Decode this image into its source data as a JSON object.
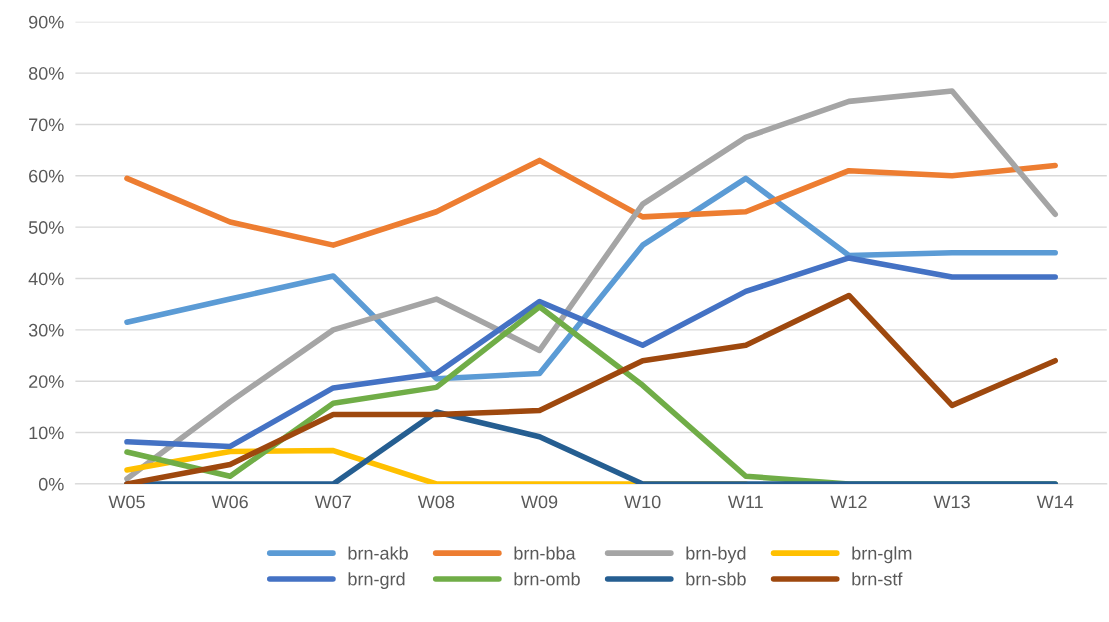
{
  "chart_data": {
    "type": "line",
    "categories": [
      "W05",
      "W06",
      "W07",
      "W08",
      "W09",
      "W10",
      "W11",
      "W12",
      "W13",
      "W14"
    ],
    "series": [
      {
        "name": "brn-akb",
        "color": "#5b9bd5",
        "values": [
          31.5,
          36,
          40.5,
          20.5,
          21.5,
          46.5,
          59.5,
          44.5,
          45,
          45
        ]
      },
      {
        "name": "brn-bba",
        "color": "#ed7d31",
        "values": [
          59.5,
          51,
          46.5,
          53,
          63,
          52,
          53,
          61,
          60,
          62
        ]
      },
      {
        "name": "brn-byd",
        "color": "#a5a5a5",
        "values": [
          1,
          16,
          30,
          36,
          26,
          54.5,
          67.5,
          74.5,
          76.5,
          52.5
        ]
      },
      {
        "name": "brn-glm",
        "color": "#ffc000",
        "values": [
          2.7,
          6.3,
          6.5,
          0,
          0,
          0,
          0,
          null,
          null,
          null
        ]
      },
      {
        "name": "brn-grd",
        "color": "#4472c4",
        "values": [
          8.2,
          7.3,
          18.7,
          21.5,
          35.5,
          27,
          37.5,
          44,
          40.3,
          40.3
        ]
      },
      {
        "name": "brn-omb",
        "color": "#70ad47",
        "values": [
          6.2,
          1.5,
          15.7,
          18.8,
          34.5,
          19.2,
          1.5,
          0,
          0,
          0
        ]
      },
      {
        "name": "brn-sbb",
        "color": "#255e91",
        "values": [
          0,
          0,
          0,
          14,
          9.2,
          0,
          0,
          0,
          0,
          0
        ]
      },
      {
        "name": "brn-stf",
        "color": "#9e480e",
        "values": [
          0,
          3.8,
          13.5,
          13.5,
          14.3,
          24,
          27,
          36.7,
          15.3,
          24
        ]
      }
    ],
    "ylim": [
      0,
      90
    ],
    "yticks": [
      {
        "value": 0,
        "label": "0%"
      },
      {
        "value": 10,
        "label": "10%"
      },
      {
        "value": 20,
        "label": "20%"
      },
      {
        "value": 30,
        "label": "30%"
      },
      {
        "value": 40,
        "label": "40%"
      },
      {
        "value": 50,
        "label": "50%"
      },
      {
        "value": 60,
        "label": "60%"
      },
      {
        "value": 70,
        "label": "70%"
      },
      {
        "value": 80,
        "label": "80%"
      },
      {
        "value": 90,
        "label": "90%"
      }
    ],
    "grid": "y",
    "legend": "bottom",
    "marker": "none",
    "line_style": "solid"
  }
}
